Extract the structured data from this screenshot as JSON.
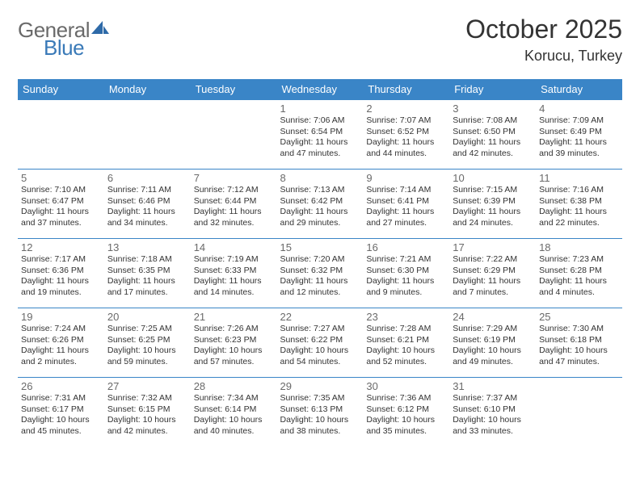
{
  "brand": {
    "part1": "General",
    "part2": "Blue"
  },
  "title": "October 2025",
  "location": "Korucu, Turkey",
  "colors": {
    "header_bg": "#3a85c7",
    "header_text": "#ffffff",
    "border": "#3a85c7",
    "daynum": "#6a6a6a",
    "body_text": "#333333",
    "logo_gray": "#6a6a6a",
    "logo_blue": "#3a7ab8",
    "background": "#ffffff"
  },
  "weekdays": [
    "Sunday",
    "Monday",
    "Tuesday",
    "Wednesday",
    "Thursday",
    "Friday",
    "Saturday"
  ],
  "weeks": [
    [
      null,
      null,
      null,
      {
        "n": "1",
        "sr": "Sunrise: 7:06 AM",
        "ss": "Sunset: 6:54 PM",
        "d1": "Daylight: 11 hours",
        "d2": "and 47 minutes."
      },
      {
        "n": "2",
        "sr": "Sunrise: 7:07 AM",
        "ss": "Sunset: 6:52 PM",
        "d1": "Daylight: 11 hours",
        "d2": "and 44 minutes."
      },
      {
        "n": "3",
        "sr": "Sunrise: 7:08 AM",
        "ss": "Sunset: 6:50 PM",
        "d1": "Daylight: 11 hours",
        "d2": "and 42 minutes."
      },
      {
        "n": "4",
        "sr": "Sunrise: 7:09 AM",
        "ss": "Sunset: 6:49 PM",
        "d1": "Daylight: 11 hours",
        "d2": "and 39 minutes."
      }
    ],
    [
      {
        "n": "5",
        "sr": "Sunrise: 7:10 AM",
        "ss": "Sunset: 6:47 PM",
        "d1": "Daylight: 11 hours",
        "d2": "and 37 minutes."
      },
      {
        "n": "6",
        "sr": "Sunrise: 7:11 AM",
        "ss": "Sunset: 6:46 PM",
        "d1": "Daylight: 11 hours",
        "d2": "and 34 minutes."
      },
      {
        "n": "7",
        "sr": "Sunrise: 7:12 AM",
        "ss": "Sunset: 6:44 PM",
        "d1": "Daylight: 11 hours",
        "d2": "and 32 minutes."
      },
      {
        "n": "8",
        "sr": "Sunrise: 7:13 AM",
        "ss": "Sunset: 6:42 PM",
        "d1": "Daylight: 11 hours",
        "d2": "and 29 minutes."
      },
      {
        "n": "9",
        "sr": "Sunrise: 7:14 AM",
        "ss": "Sunset: 6:41 PM",
        "d1": "Daylight: 11 hours",
        "d2": "and 27 minutes."
      },
      {
        "n": "10",
        "sr": "Sunrise: 7:15 AM",
        "ss": "Sunset: 6:39 PM",
        "d1": "Daylight: 11 hours",
        "d2": "and 24 minutes."
      },
      {
        "n": "11",
        "sr": "Sunrise: 7:16 AM",
        "ss": "Sunset: 6:38 PM",
        "d1": "Daylight: 11 hours",
        "d2": "and 22 minutes."
      }
    ],
    [
      {
        "n": "12",
        "sr": "Sunrise: 7:17 AM",
        "ss": "Sunset: 6:36 PM",
        "d1": "Daylight: 11 hours",
        "d2": "and 19 minutes."
      },
      {
        "n": "13",
        "sr": "Sunrise: 7:18 AM",
        "ss": "Sunset: 6:35 PM",
        "d1": "Daylight: 11 hours",
        "d2": "and 17 minutes."
      },
      {
        "n": "14",
        "sr": "Sunrise: 7:19 AM",
        "ss": "Sunset: 6:33 PM",
        "d1": "Daylight: 11 hours",
        "d2": "and 14 minutes."
      },
      {
        "n": "15",
        "sr": "Sunrise: 7:20 AM",
        "ss": "Sunset: 6:32 PM",
        "d1": "Daylight: 11 hours",
        "d2": "and 12 minutes."
      },
      {
        "n": "16",
        "sr": "Sunrise: 7:21 AM",
        "ss": "Sunset: 6:30 PM",
        "d1": "Daylight: 11 hours",
        "d2": "and 9 minutes."
      },
      {
        "n": "17",
        "sr": "Sunrise: 7:22 AM",
        "ss": "Sunset: 6:29 PM",
        "d1": "Daylight: 11 hours",
        "d2": "and 7 minutes."
      },
      {
        "n": "18",
        "sr": "Sunrise: 7:23 AM",
        "ss": "Sunset: 6:28 PM",
        "d1": "Daylight: 11 hours",
        "d2": "and 4 minutes."
      }
    ],
    [
      {
        "n": "19",
        "sr": "Sunrise: 7:24 AM",
        "ss": "Sunset: 6:26 PM",
        "d1": "Daylight: 11 hours",
        "d2": "and 2 minutes."
      },
      {
        "n": "20",
        "sr": "Sunrise: 7:25 AM",
        "ss": "Sunset: 6:25 PM",
        "d1": "Daylight: 10 hours",
        "d2": "and 59 minutes."
      },
      {
        "n": "21",
        "sr": "Sunrise: 7:26 AM",
        "ss": "Sunset: 6:23 PM",
        "d1": "Daylight: 10 hours",
        "d2": "and 57 minutes."
      },
      {
        "n": "22",
        "sr": "Sunrise: 7:27 AM",
        "ss": "Sunset: 6:22 PM",
        "d1": "Daylight: 10 hours",
        "d2": "and 54 minutes."
      },
      {
        "n": "23",
        "sr": "Sunrise: 7:28 AM",
        "ss": "Sunset: 6:21 PM",
        "d1": "Daylight: 10 hours",
        "d2": "and 52 minutes."
      },
      {
        "n": "24",
        "sr": "Sunrise: 7:29 AM",
        "ss": "Sunset: 6:19 PM",
        "d1": "Daylight: 10 hours",
        "d2": "and 49 minutes."
      },
      {
        "n": "25",
        "sr": "Sunrise: 7:30 AM",
        "ss": "Sunset: 6:18 PM",
        "d1": "Daylight: 10 hours",
        "d2": "and 47 minutes."
      }
    ],
    [
      {
        "n": "26",
        "sr": "Sunrise: 7:31 AM",
        "ss": "Sunset: 6:17 PM",
        "d1": "Daylight: 10 hours",
        "d2": "and 45 minutes."
      },
      {
        "n": "27",
        "sr": "Sunrise: 7:32 AM",
        "ss": "Sunset: 6:15 PM",
        "d1": "Daylight: 10 hours",
        "d2": "and 42 minutes."
      },
      {
        "n": "28",
        "sr": "Sunrise: 7:34 AM",
        "ss": "Sunset: 6:14 PM",
        "d1": "Daylight: 10 hours",
        "d2": "and 40 minutes."
      },
      {
        "n": "29",
        "sr": "Sunrise: 7:35 AM",
        "ss": "Sunset: 6:13 PM",
        "d1": "Daylight: 10 hours",
        "d2": "and 38 minutes."
      },
      {
        "n": "30",
        "sr": "Sunrise: 7:36 AM",
        "ss": "Sunset: 6:12 PM",
        "d1": "Daylight: 10 hours",
        "d2": "and 35 minutes."
      },
      {
        "n": "31",
        "sr": "Sunrise: 7:37 AM",
        "ss": "Sunset: 6:10 PM",
        "d1": "Daylight: 10 hours",
        "d2": "and 33 minutes."
      },
      null
    ]
  ]
}
